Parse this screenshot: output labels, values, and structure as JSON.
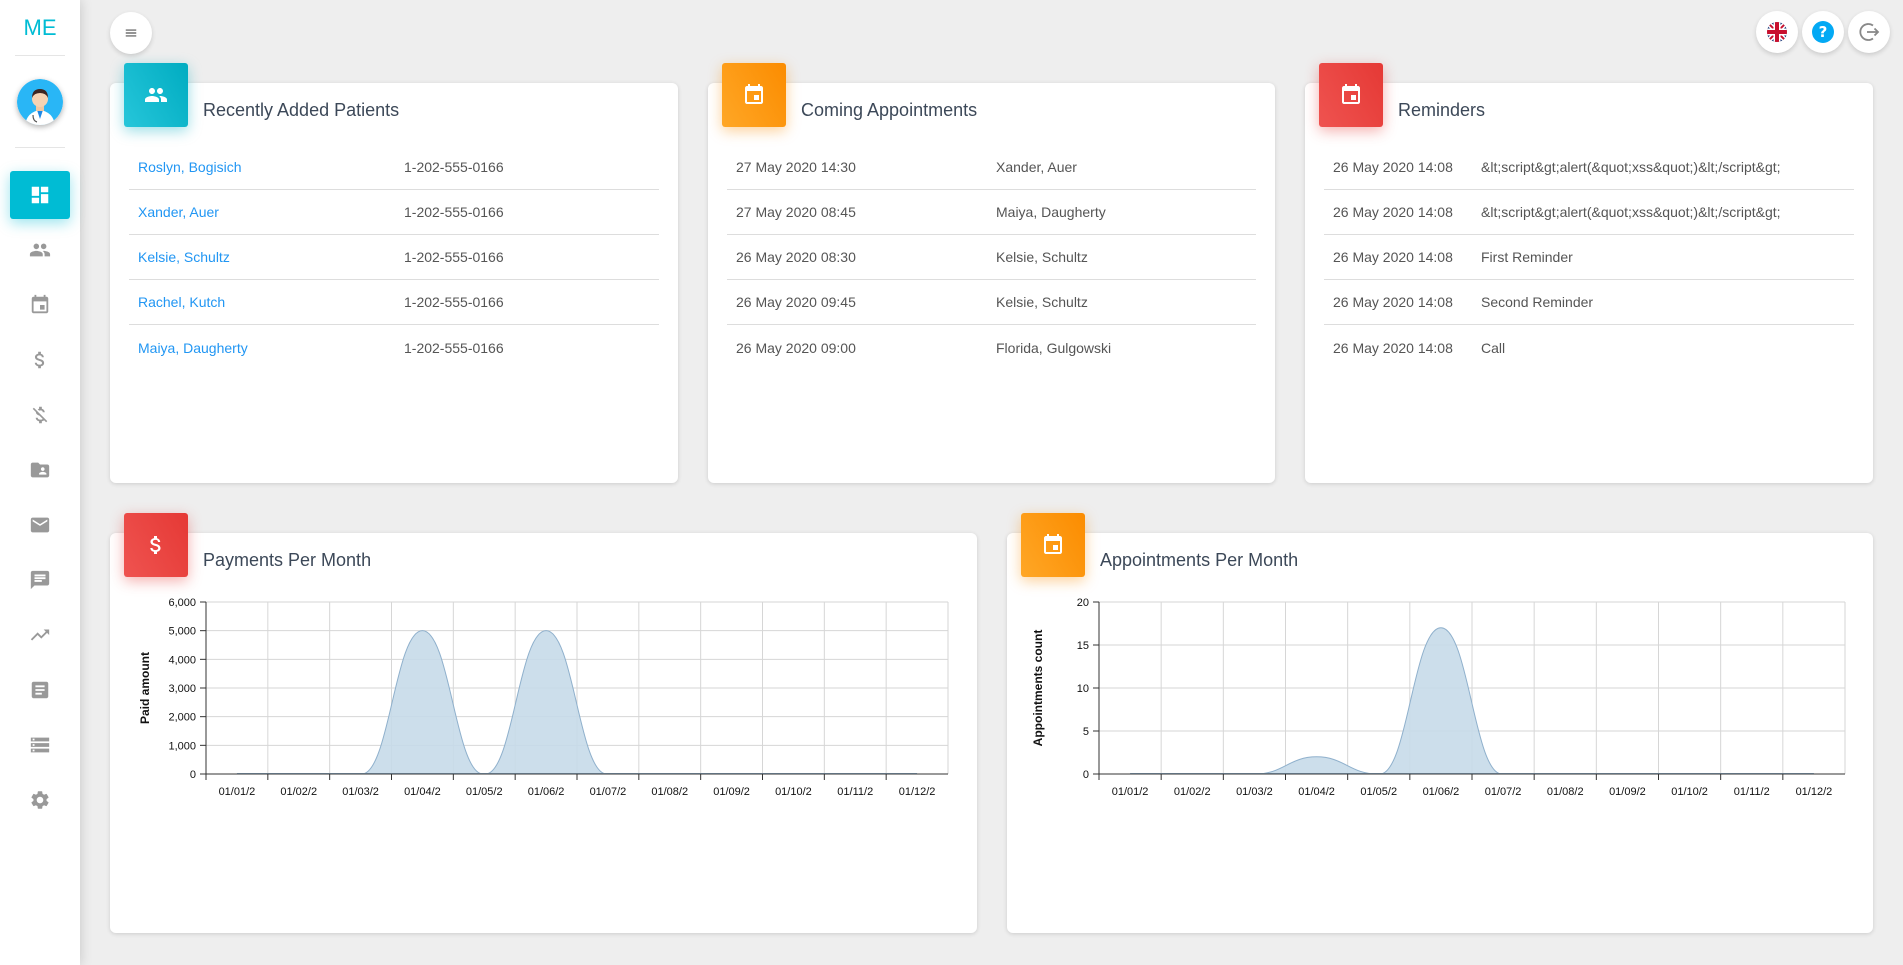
{
  "app": {
    "logo": "ME"
  },
  "colors": {
    "cyan": "#00bcd4",
    "orange": "#fb8c00",
    "red": "#e53935",
    "link": "#2196f3",
    "area_fill": "#c7dae9",
    "area_stroke": "#8fb0cc"
  },
  "sidebar": {
    "items": [
      {
        "icon": "dashboard-icon",
        "active": true
      },
      {
        "icon": "patients-icon"
      },
      {
        "icon": "calendar-icon"
      },
      {
        "icon": "dollar-icon"
      },
      {
        "icon": "money-off-icon"
      },
      {
        "icon": "folder-user-icon"
      },
      {
        "icon": "mail-icon"
      },
      {
        "icon": "chat-icon"
      },
      {
        "icon": "trending-up-icon"
      },
      {
        "icon": "document-icon"
      },
      {
        "icon": "list-icon"
      },
      {
        "icon": "gear-icon"
      }
    ]
  },
  "topbar": {
    "buttons": [
      "flag-uk-icon",
      "help-icon",
      "logout-icon"
    ]
  },
  "patients": {
    "title": "Recently Added Patients",
    "rows": [
      {
        "name": "Roslyn, Bogisich",
        "phone": "1-202-555-0166"
      },
      {
        "name": "Xander, Auer",
        "phone": "1-202-555-0166"
      },
      {
        "name": "Kelsie, Schultz",
        "phone": "1-202-555-0166"
      },
      {
        "name": "Rachel, Kutch",
        "phone": "1-202-555-0166"
      },
      {
        "name": "Maiya, Daugherty",
        "phone": "1-202-555-0166"
      }
    ]
  },
  "appointments": {
    "title": "Coming Appointments",
    "rows": [
      {
        "date": "27 May 2020 14:30",
        "name": "Xander, Auer"
      },
      {
        "date": "27 May 2020 08:45",
        "name": "Maiya, Daugherty"
      },
      {
        "date": "26 May 2020 08:30",
        "name": "Kelsie, Schultz"
      },
      {
        "date": "26 May 2020 09:45",
        "name": "Kelsie, Schultz"
      },
      {
        "date": "26 May 2020 09:00",
        "name": "Florida, Gulgowski"
      }
    ]
  },
  "reminders": {
    "title": "Reminders",
    "rows": [
      {
        "date": "26 May 2020 14:08",
        "text": "&lt;script&gt;alert(&quot;xss&quot;)&lt;/script&gt;"
      },
      {
        "date": "26 May 2020 14:08",
        "text": "&lt;script&gt;alert(&quot;xss&quot;)&lt;/script&gt;"
      },
      {
        "date": "26 May 2020 14:08",
        "text": "First Reminder"
      },
      {
        "date": "26 May 2020 14:08",
        "text": "Second Reminder"
      },
      {
        "date": "26 May 2020 14:08",
        "text": "Call"
      }
    ]
  },
  "payments_card": {
    "title": "Payments Per Month"
  },
  "appointments_card": {
    "title": "Appointments Per Month"
  },
  "chart_data": [
    {
      "type": "area",
      "title": "Payments Per Month",
      "ylabel": "Paid amount",
      "xlabel": "",
      "categories": [
        "01/01/2",
        "01/02/2",
        "01/03/2",
        "01/04/2",
        "01/05/2",
        "01/06/2",
        "01/07/2",
        "01/08/2",
        "01/09/2",
        "01/10/2",
        "01/11/2",
        "01/12/2"
      ],
      "values": [
        0,
        0,
        0,
        5000,
        0,
        5000,
        0,
        0,
        0,
        0,
        0,
        0
      ],
      "ylim": [
        0,
        6000
      ],
      "yticks": [
        "0",
        "1,000",
        "2,000",
        "3,000",
        "4,000",
        "5,000",
        "6,000"
      ],
      "grid": true
    },
    {
      "type": "area",
      "title": "Appointments Per Month",
      "ylabel": "Appointments count",
      "xlabel": "",
      "categories": [
        "01/01/2",
        "01/02/2",
        "01/03/2",
        "01/04/2",
        "01/05/2",
        "01/06/2",
        "01/07/2",
        "01/08/2",
        "01/09/2",
        "01/10/2",
        "01/11/2",
        "01/12/2"
      ],
      "values": [
        0,
        0,
        0,
        2,
        0,
        17,
        0,
        0,
        0,
        0,
        0,
        0
      ],
      "ylim": [
        0,
        20
      ],
      "yticks": [
        "0",
        "5",
        "10",
        "15",
        "20"
      ],
      "grid": true
    }
  ]
}
